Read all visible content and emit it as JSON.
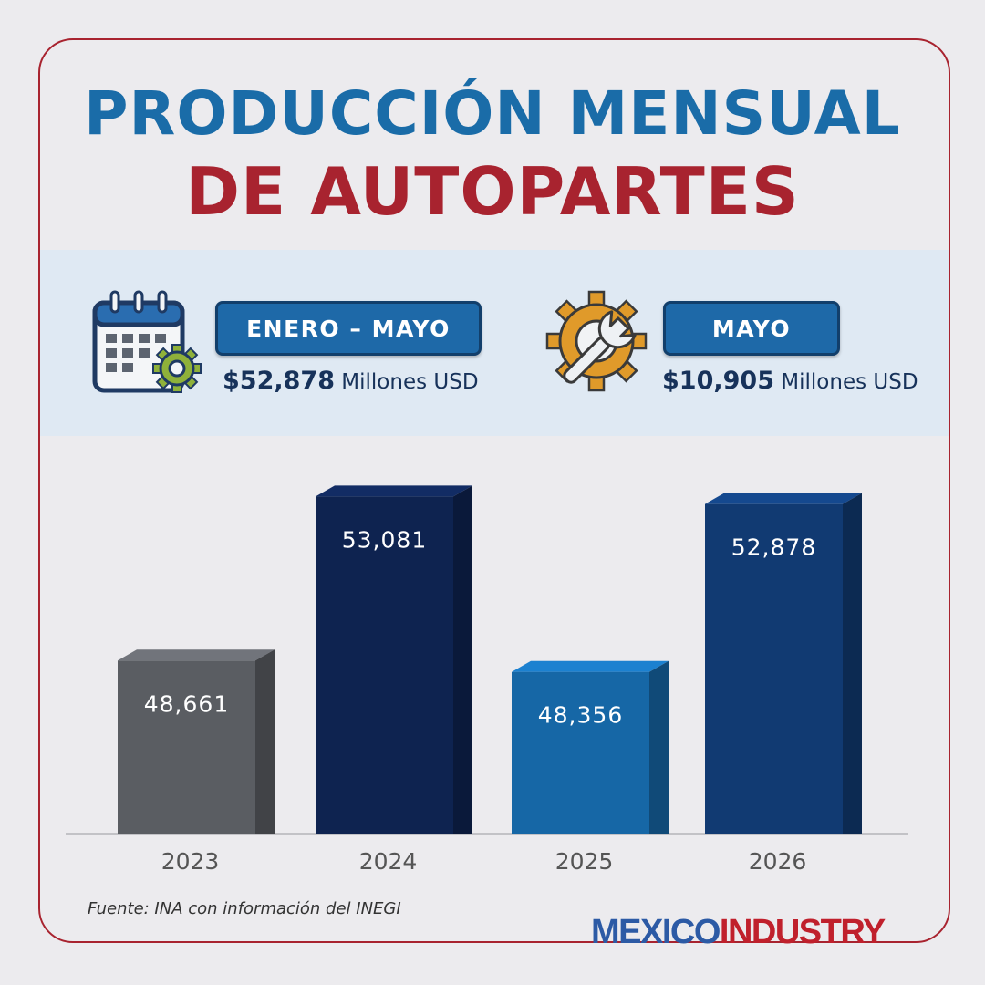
{
  "title": {
    "line1": "PRODUCCIÓN MENSUAL",
    "line2": "DE AUTOPARTES"
  },
  "summary": {
    "left": {
      "icon": "calendar-gear-icon",
      "label": "ENERO – MAYO",
      "amount": "$52,878",
      "unit": "Millones USD"
    },
    "right": {
      "icon": "gear-wrench-icon",
      "label": "MAYO",
      "amount": "$10,905",
      "unit": "Millones USD"
    }
  },
  "chart_data": {
    "type": "bar",
    "categories": [
      "2023",
      "2024",
      "2025",
      "2026"
    ],
    "values": [
      48661,
      53081,
      48356,
      52878
    ],
    "value_labels": [
      "48,661",
      "53,081",
      "48,356",
      "52,878"
    ],
    "colors": [
      "#5a5d62",
      "#0e2350",
      "#1667a6",
      "#113a72"
    ],
    "title": "",
    "xlabel": "",
    "ylabel": "",
    "ylim": [
      44000,
      54000
    ],
    "grid": false,
    "legend": "none"
  },
  "footer": {
    "source": "Fuente: INA con información del INEGI",
    "brand_part1": "MEXICO",
    "brand_part2": "INDUSTRY"
  },
  "colors": {
    "frame": "#a8232f",
    "title_blue": "#1a6ca8",
    "title_red": "#a8232f",
    "band": "#dfe9f3",
    "pill": "#1e69a8"
  }
}
